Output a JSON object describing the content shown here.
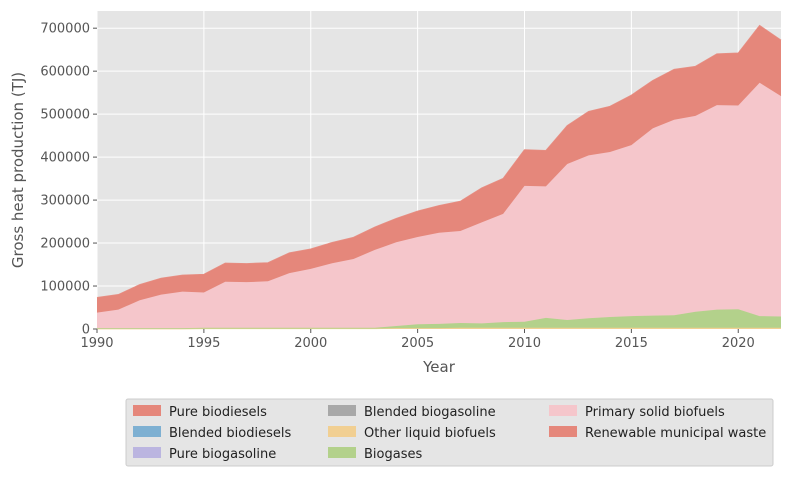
{
  "chart_data": {
    "type": "area",
    "stacked": true,
    "xlabel": "Year",
    "ylabel": "Gross heat production (TJ)",
    "xlim": [
      1990,
      2022
    ],
    "ylim": [
      0,
      740000
    ],
    "x_ticks": [
      1990,
      1995,
      2000,
      2005,
      2010,
      2015,
      2020
    ],
    "y_ticks": [
      0,
      100000,
      200000,
      300000,
      400000,
      500000,
      600000,
      700000
    ],
    "x_tick_labels": [
      "1990",
      "1995",
      "2000",
      "2005",
      "2010",
      "2015",
      "2020"
    ],
    "y_tick_labels": [
      "0",
      "100000",
      "200000",
      "300000",
      "400000",
      "500000",
      "600000",
      "700000"
    ],
    "grid": true,
    "legend_placement": "bottom",
    "x": [
      1990,
      1991,
      1992,
      1993,
      1994,
      1995,
      1996,
      1997,
      1998,
      1999,
      2000,
      2001,
      2002,
      2003,
      2004,
      2005,
      2006,
      2007,
      2008,
      2009,
      2010,
      2011,
      2012,
      2013,
      2014,
      2015,
      2016,
      2017,
      2018,
      2019,
      2020,
      2021,
      2022
    ],
    "series": [
      {
        "name": "Pure biodiesels",
        "color": "#e5877b",
        "values": [
          0,
          0,
          0,
          0,
          0,
          0,
          0,
          0,
          0,
          0,
          0,
          0,
          0,
          0,
          0,
          0,
          0,
          0,
          0,
          0,
          0,
          0,
          0,
          0,
          0,
          0,
          0,
          0,
          0,
          0,
          0,
          0,
          0
        ]
      },
      {
        "name": "Blended biodiesels",
        "color": "#7eb0d2",
        "values": [
          0,
          0,
          0,
          0,
          0,
          0,
          0,
          0,
          0,
          0,
          0,
          0,
          0,
          0,
          0,
          0,
          0,
          0,
          0,
          0,
          0,
          0,
          0,
          0,
          0,
          0,
          0,
          0,
          0,
          0,
          0,
          0,
          0
        ]
      },
      {
        "name": "Pure biogasoline",
        "color": "#bbb5e0",
        "values": [
          0,
          0,
          0,
          0,
          0,
          0,
          0,
          0,
          0,
          0,
          0,
          0,
          0,
          0,
          0,
          0,
          0,
          0,
          0,
          0,
          0,
          0,
          0,
          0,
          0,
          0,
          0,
          0,
          0,
          0,
          0,
          0,
          0
        ]
      },
      {
        "name": "Blended biogasoline",
        "color": "#a8a8a8",
        "values": [
          0,
          0,
          0,
          0,
          0,
          0,
          0,
          0,
          0,
          0,
          0,
          0,
          0,
          0,
          0,
          0,
          0,
          0,
          0,
          0,
          0,
          0,
          0,
          0,
          0,
          0,
          0,
          0,
          0,
          0,
          0,
          0,
          0
        ]
      },
      {
        "name": "Other liquid biofuels",
        "color": "#f1cf92",
        "values": [
          500,
          500,
          500,
          500,
          500,
          1000,
          1000,
          1000,
          1000,
          1000,
          1000,
          1000,
          1000,
          1000,
          2000,
          2000,
          2000,
          3000,
          3000,
          3000,
          3000,
          3000,
          3000,
          3000,
          3000,
          3000,
          3000,
          3000,
          3000,
          3000,
          3000,
          3000,
          3000
        ]
      },
      {
        "name": "Biogases",
        "color": "#b3d18b",
        "values": [
          1500,
          1500,
          1500,
          1500,
          1500,
          2000,
          2000,
          2000,
          2000,
          2000,
          2000,
          2000,
          2000,
          2000,
          5000,
          9000,
          10000,
          11000,
          10000,
          13000,
          14000,
          23000,
          18000,
          22000,
          25000,
          27000,
          28000,
          29000,
          37000,
          42000,
          43000,
          27000,
          26000
        ]
      },
      {
        "name": "Primary solid biofuels",
        "color": "#f5c6cb",
        "values": [
          36000,
          43000,
          65000,
          78000,
          85000,
          82000,
          107000,
          106000,
          108000,
          127000,
          137000,
          150000,
          160000,
          181000,
          195000,
          203000,
          212000,
          214000,
          235000,
          252000,
          316000,
          306000,
          363000,
          379000,
          384000,
          398000,
          436000,
          455000,
          456000,
          476000,
          474000,
          543000,
          513000
        ]
      },
      {
        "name": "Renewable municipal waste",
        "color": "#e5877b",
        "values": [
          35000,
          35000,
          36000,
          38000,
          38000,
          42000,
          43000,
          43000,
          43000,
          47000,
          46000,
          48000,
          50000,
          53000,
          55000,
          60000,
          63000,
          69000,
          80000,
          82000,
          84000,
          83000,
          89000,
          102000,
          106000,
          116000,
          111000,
          117000,
          115000,
          119000,
          122000,
          133000,
          130000
        ]
      }
    ]
  }
}
